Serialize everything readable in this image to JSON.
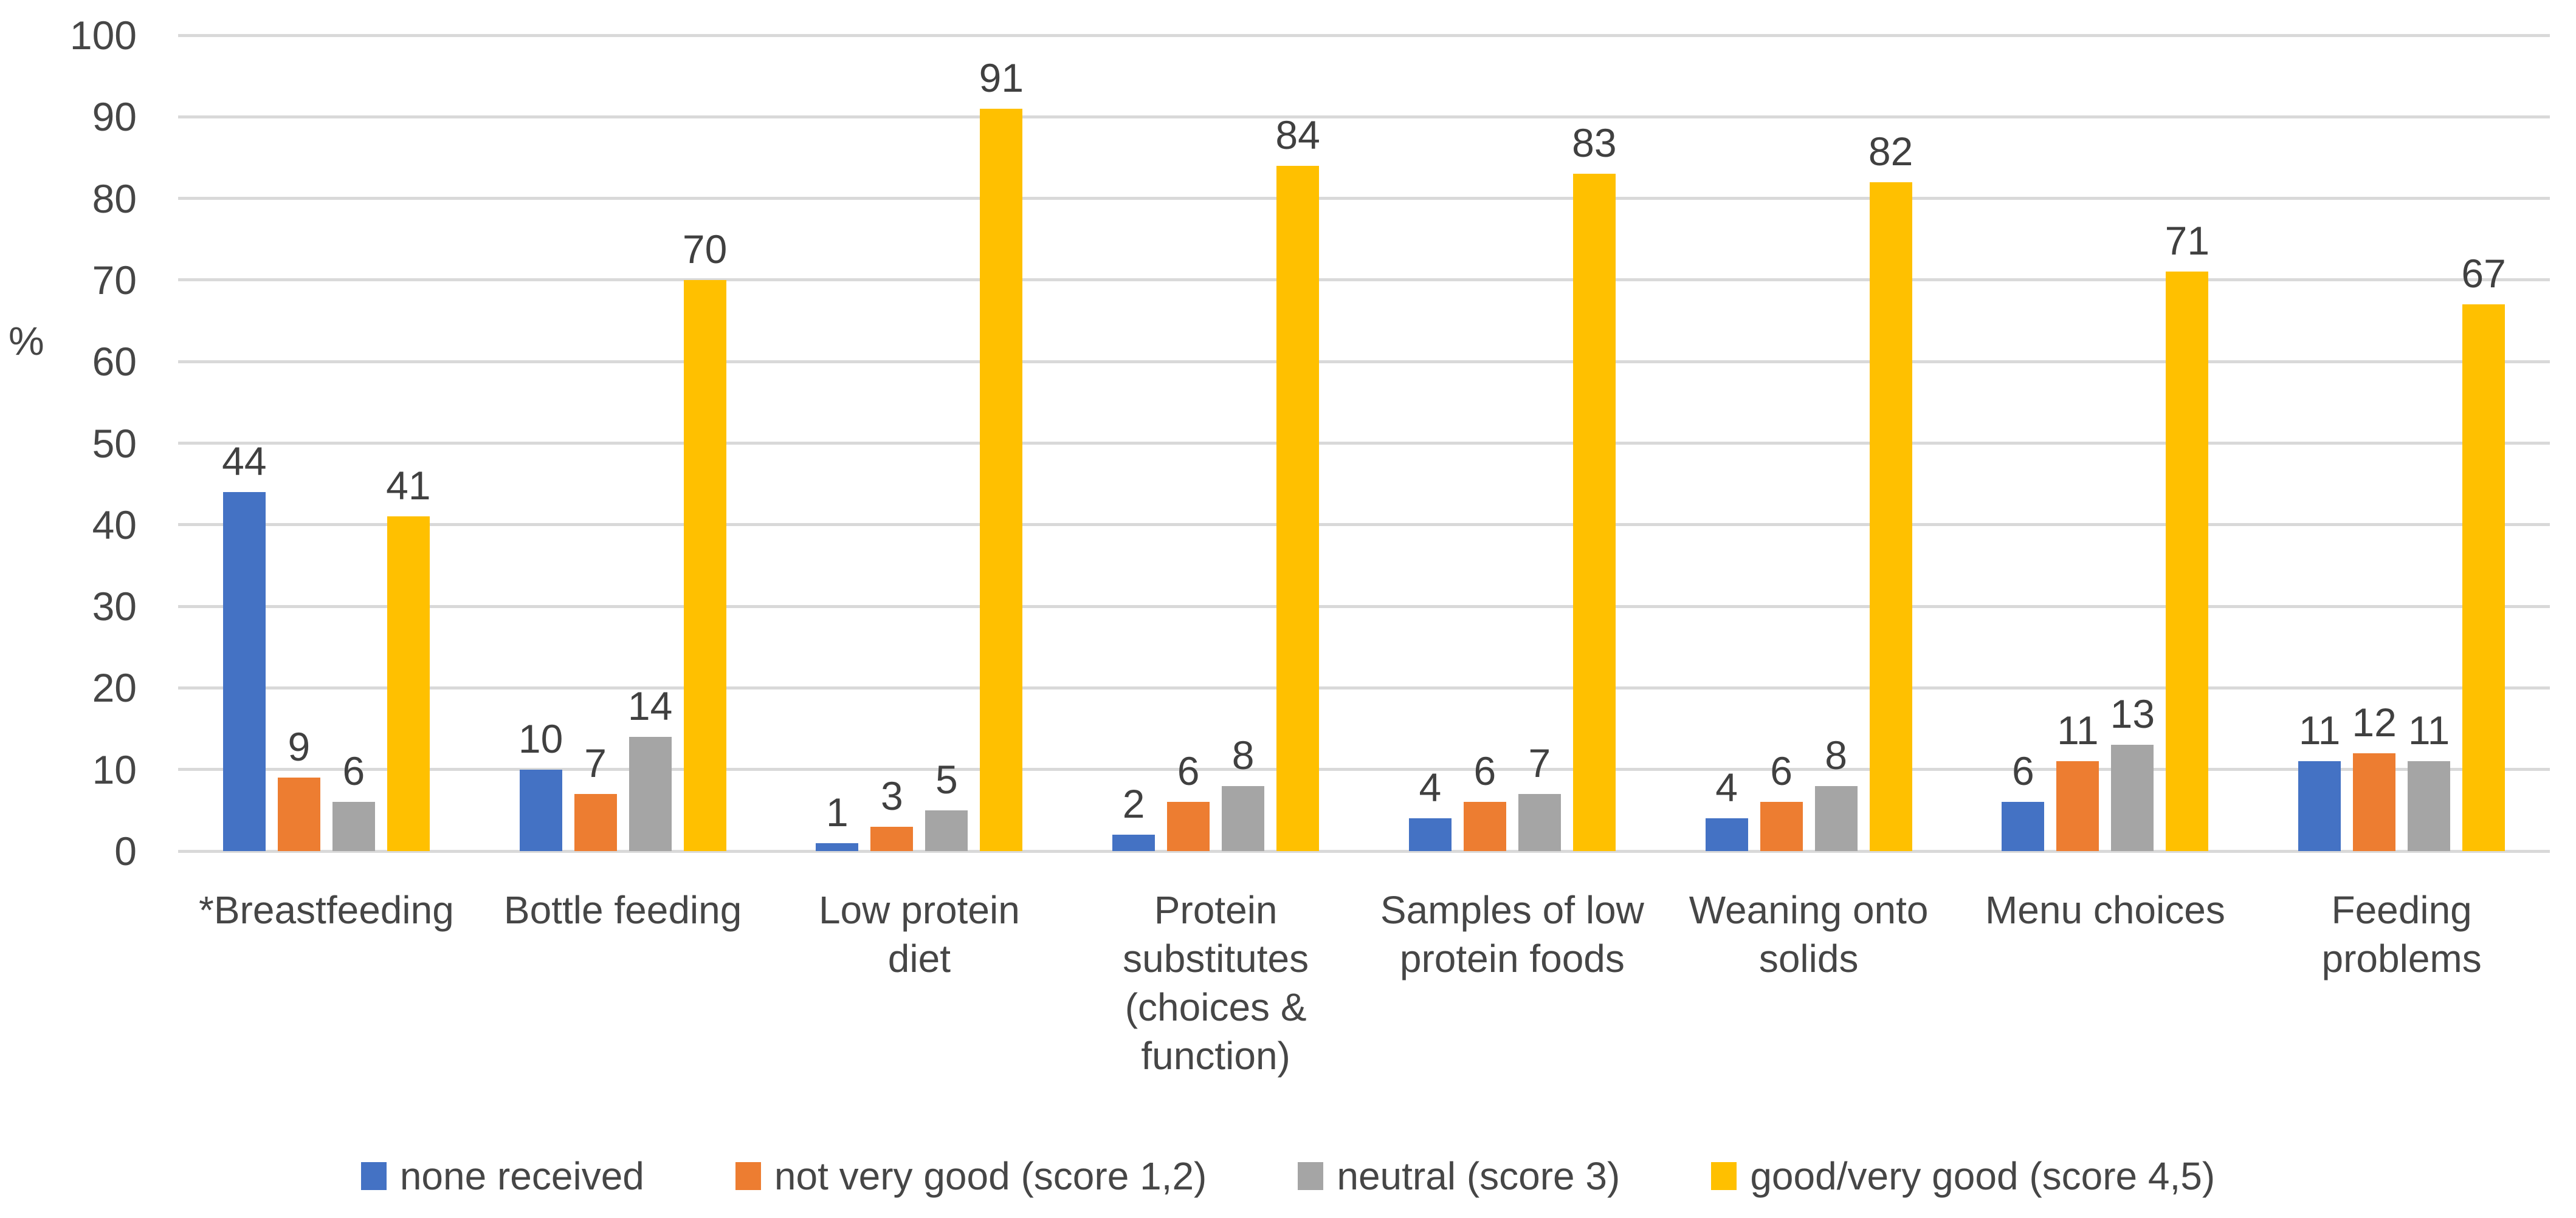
{
  "chart_data": {
    "type": "bar",
    "title": "",
    "xlabel": "",
    "ylabel": "%",
    "ylim": [
      0,
      100
    ],
    "y_ticks": [
      0,
      10,
      20,
      30,
      40,
      50,
      60,
      70,
      80,
      90,
      100
    ],
    "grid": true,
    "legend_position": "bottom",
    "categories": [
      "*Breastfeeding",
      "Bottle feeding",
      "Low protein diet",
      "Protein substitutes (choices & function)",
      "Samples of low protein foods",
      "Weaning onto solids",
      "Menu choices",
      "Feeding problems"
    ],
    "category_label_lines": [
      [
        "*Breastfeeding"
      ],
      [
        "Bottle feeding"
      ],
      [
        "Low protein",
        "diet"
      ],
      [
        "Protein",
        "substitutes",
        "(choices &",
        "function)"
      ],
      [
        "Samples of low",
        "protein foods"
      ],
      [
        "Weaning onto",
        "solids"
      ],
      [
        "Menu choices"
      ],
      [
        "Feeding",
        "problems"
      ]
    ],
    "series": [
      {
        "name": "none received",
        "color": "#4472C4",
        "values": [
          44,
          10,
          1,
          2,
          4,
          4,
          6,
          11
        ]
      },
      {
        "name": "not very good (score 1,2)",
        "color": "#ED7D31",
        "values": [
          9,
          7,
          3,
          6,
          6,
          6,
          11,
          12
        ]
      },
      {
        "name": "neutral (score 3)",
        "color": "#A5A5A5",
        "values": [
          6,
          14,
          5,
          8,
          7,
          8,
          13,
          11
        ]
      },
      {
        "name": "good/very good (score 4,5)",
        "color": "#FFC000",
        "values": [
          41,
          70,
          91,
          84,
          83,
          82,
          71,
          67
        ]
      }
    ],
    "colors": {
      "gridline": "#D9D9D9",
      "text": "#464646"
    }
  }
}
